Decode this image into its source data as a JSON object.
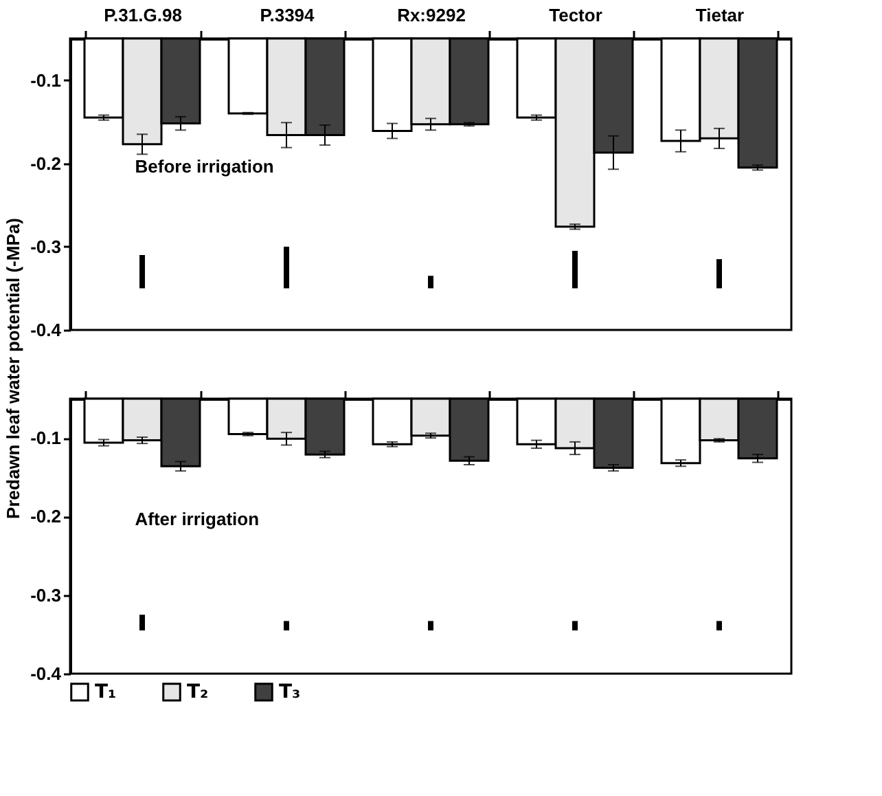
{
  "chart_data": [
    {
      "type": "bar",
      "ylabel": "Predawn leaf water potential (-MPa)",
      "categories": [
        "P.31.G.98",
        "P.3394",
        "Rx:9292",
        "Tector",
        "Tietar"
      ],
      "ylim": [
        -0.4,
        -0.05
      ],
      "yticks": [
        -0.1,
        -0.2,
        -0.3,
        -0.4
      ],
      "grid": false,
      "annotations": [
        "Before irrigation"
      ],
      "series": [
        {
          "color": "#ffffff",
          "values": [
            -0.145,
            -0.14,
            -0.161,
            -0.145,
            -0.173
          ],
          "errors": [
            0.003,
            0.001,
            0.009,
            0.003,
            0.013
          ]
        },
        {
          "color": "#e6e6e6",
          "values": [
            -0.177,
            -0.166,
            -0.153,
            -0.276,
            -0.17
          ],
          "errors": [
            0.012,
            0.015,
            0.007,
            0.003,
            0.012
          ]
        },
        {
          "color": "#404040",
          "values": [
            -0.152,
            -0.166,
            -0.153,
            -0.187,
            -0.205
          ],
          "errors": [
            0.008,
            0.012,
            0.002,
            0.02,
            0.003
          ]
        },
        {
          "type": "bar",
          "color": "#000000",
          "base": [
            -0.35,
            -0.35,
            -0.35,
            -0.35,
            -0.35
          ],
          "values": [
            0.04,
            0.05,
            0.015,
            0.045,
            0.035
          ]
        }
      ]
    },
    {
      "type": "bar",
      "categories": [
        null,
        null,
        null,
        null,
        null
      ],
      "legend": "bottom",
      "ylim": [
        -0.4,
        -0.05
      ],
      "yticks": [
        -0.1,
        -0.2,
        -0.3,
        -0.4
      ],
      "grid": false,
      "annotations": [
        "After irrigation"
      ],
      "series": [
        {
          "name": "T₁",
          "color": "#ffffff",
          "values": [
            -0.106,
            -0.095,
            -0.108,
            -0.108,
            -0.132
          ],
          "errors": [
            0.004,
            0.002,
            0.003,
            0.005,
            0.004
          ]
        },
        {
          "name": "T₂",
          "color": "#e6e6e6",
          "values": [
            -0.103,
            -0.101,
            -0.097,
            -0.113,
            -0.103
          ],
          "errors": [
            0.004,
            0.008,
            0.003,
            0.008,
            0.002
          ]
        },
        {
          "name": "T₃",
          "color": "#404040",
          "values": [
            -0.136,
            -0.121,
            -0.129,
            -0.138,
            -0.126
          ],
          "errors": [
            0.006,
            0.004,
            0.005,
            0.004,
            0.005
          ]
        },
        {
          "type": "bar",
          "color": "#000000",
          "base": [
            -0.345,
            -0.345,
            -0.345,
            -0.345,
            -0.345
          ],
          "values": [
            0.02,
            0.012,
            0.012,
            0.012,
            0.012
          ]
        }
      ]
    }
  ]
}
